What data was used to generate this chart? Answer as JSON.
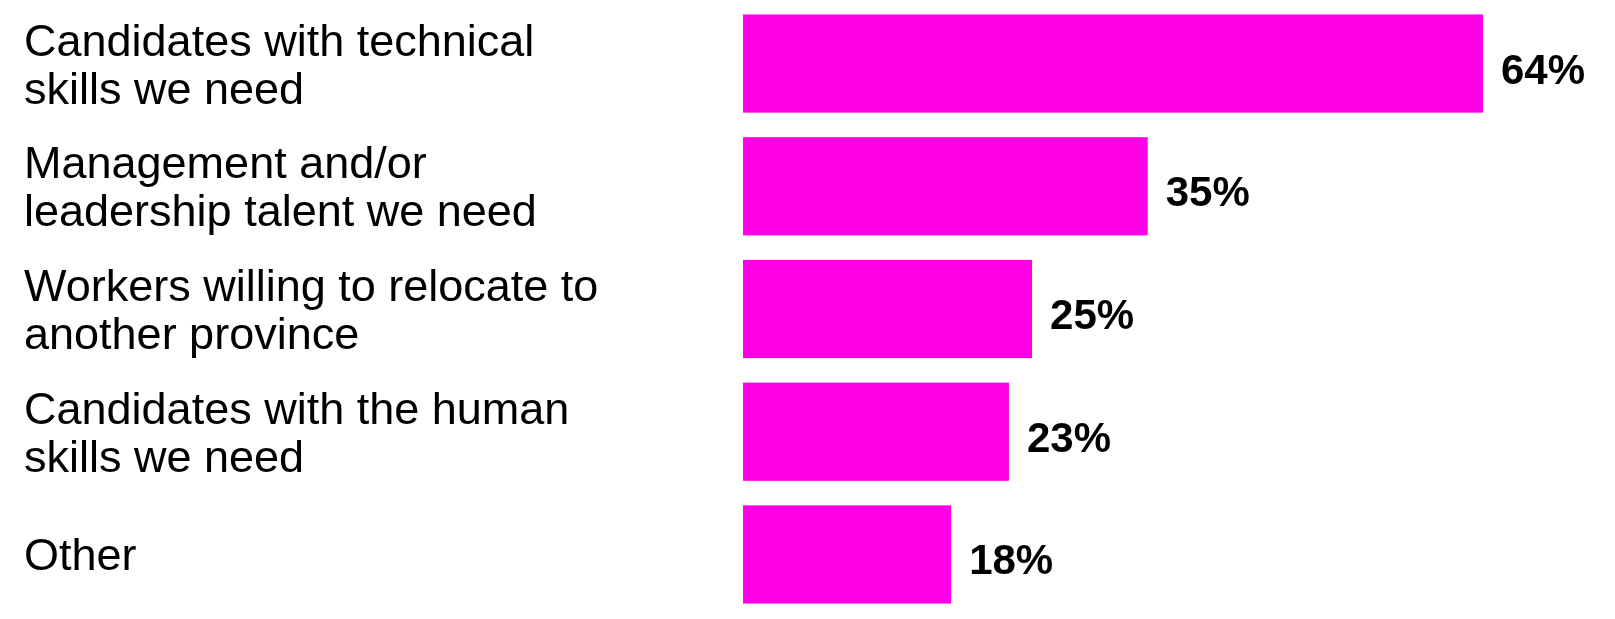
{
  "chart_data": {
    "type": "bar",
    "orientation": "horizontal",
    "categories": [
      "Candidates with technical\nskills we need",
      "Management and/or\nleadership talent we need",
      "Workers willing to relocate to\nanother province",
      "Candidates with the human\nskills we need",
      "Other"
    ],
    "values": [
      64,
      35,
      25,
      23,
      18
    ],
    "value_labels": [
      "64%",
      "35%",
      "25%",
      "23%",
      "18%"
    ],
    "color": "#ff00e6"
  }
}
